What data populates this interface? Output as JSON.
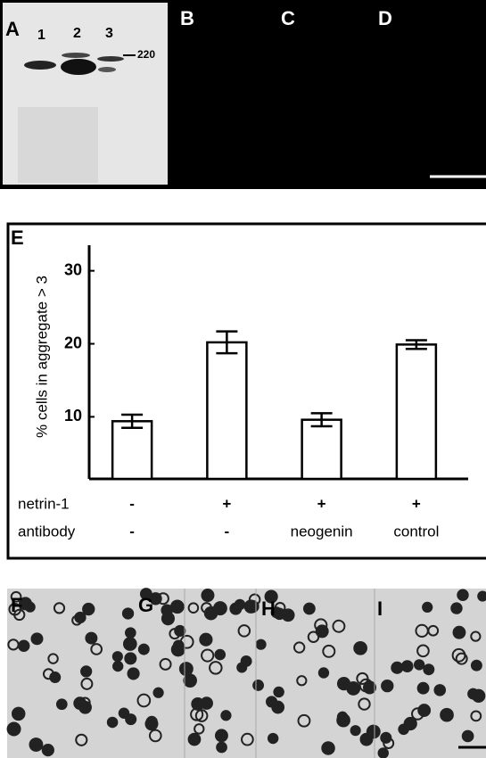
{
  "panels": {
    "a": "A",
    "b": "B",
    "c": "C",
    "d": "D",
    "f": "F",
    "g": "G",
    "h": "H",
    "i": "I"
  },
  "blot": {
    "lanes": [
      "1",
      "2",
      "3"
    ],
    "marker": "220"
  },
  "chart_data": {
    "type": "bar",
    "label": "E",
    "y_label": "% cells in aggregate > 3",
    "values": [
      9.4,
      20.2,
      9.6,
      19.9
    ],
    "errors": [
      0.9,
      1.5,
      0.9,
      0.6
    ],
    "color": "#ffffff",
    "ylim": [
      1.5,
      33.5
    ],
    "yticks": [
      10,
      20,
      30
    ],
    "condition_rows": [
      {
        "name": "netrin-1",
        "values": [
          "-",
          "+",
          "+",
          "+"
        ]
      },
      {
        "name": "antibody",
        "values": [
          "-",
          "-",
          "neogenin",
          "control"
        ]
      }
    ]
  }
}
